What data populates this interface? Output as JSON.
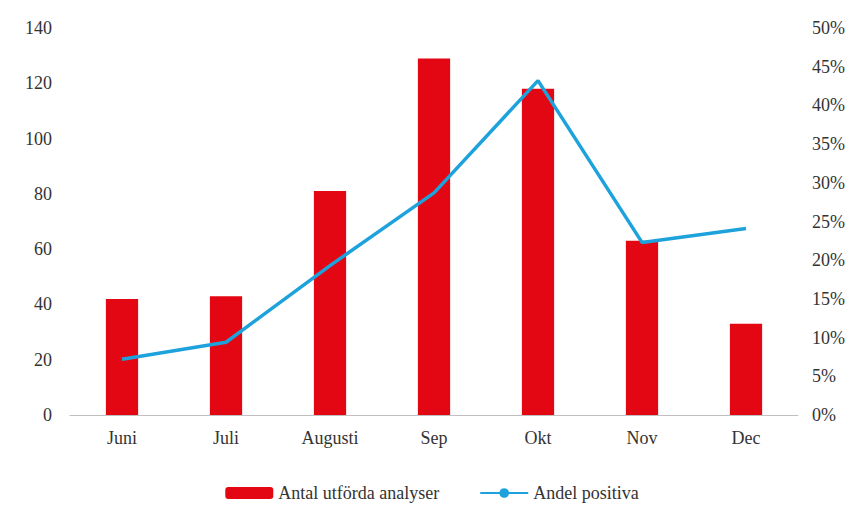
{
  "chart_data": {
    "type": "bar",
    "categories": [
      "Juni",
      "Juli",
      "Augusti",
      "Sep",
      "Okt",
      "Nov",
      "Dec"
    ],
    "series": [
      {
        "name": "Antal utförda analyser",
        "type": "bar",
        "color": "#e30613",
        "values": [
          42,
          43,
          81,
          129,
          118,
          63,
          33
        ]
      },
      {
        "name": "Andel positiva",
        "type": "line",
        "color": "#1ea2dc",
        "axis": "y2",
        "values": [
          7.2,
          9.4,
          19.3,
          28.7,
          43.2,
          22.3,
          24.1
        ]
      }
    ],
    "ylim": [
      0,
      140
    ],
    "yticks": [
      0,
      20,
      40,
      60,
      80,
      100,
      120,
      140
    ],
    "y2lim": [
      0,
      50
    ],
    "y2ticks": [
      {
        "value": 0,
        "label": "0%"
      },
      {
        "value": 5,
        "label": "5%"
      },
      {
        "value": 10,
        "label": "10%"
      },
      {
        "value": 15,
        "label": "15%"
      },
      {
        "value": 20,
        "label": "20%"
      },
      {
        "value": 25,
        "label": "25%"
      },
      {
        "value": 30,
        "label": "30%"
      },
      {
        "value": 35,
        "label": "35%"
      },
      {
        "value": 40,
        "label": "40%"
      },
      {
        "value": 45,
        "label": "45%"
      },
      {
        "value": 50,
        "label": "50%"
      }
    ],
    "grid": false,
    "legend": "bottom"
  }
}
